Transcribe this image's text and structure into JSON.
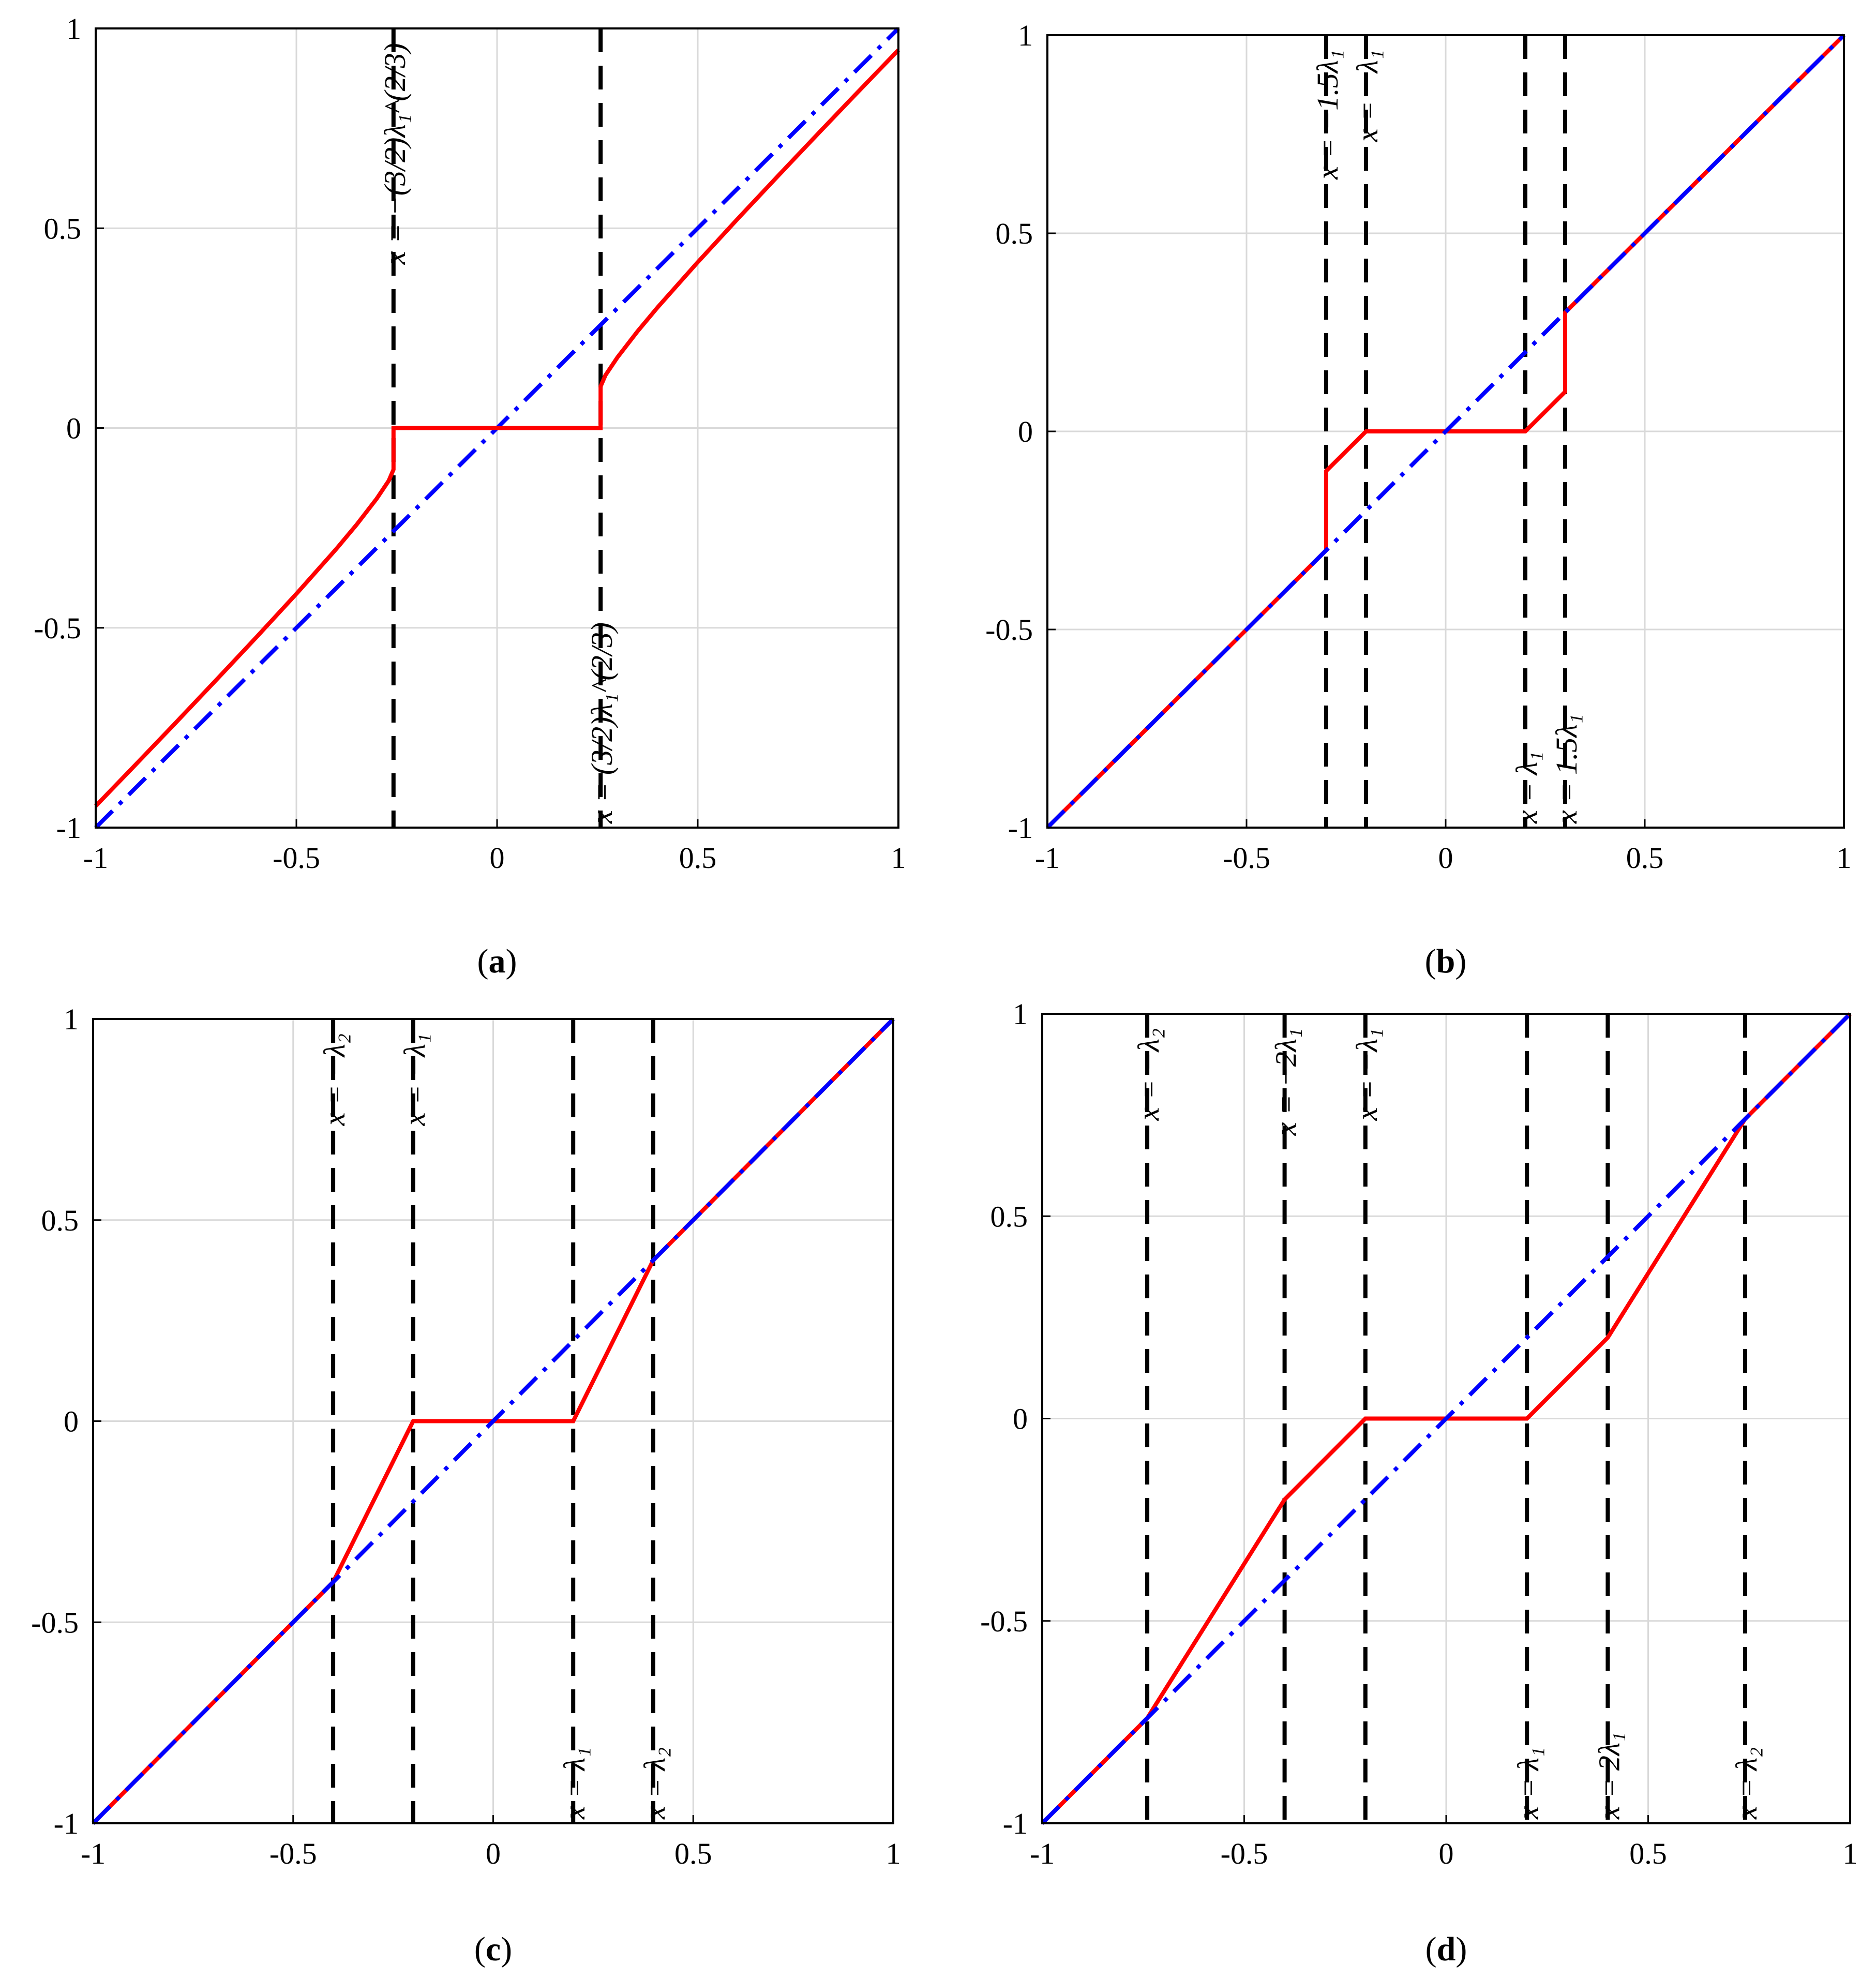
{
  "chart_data": [
    {
      "type": "line",
      "caption": "(a)",
      "caption_letter": "a",
      "xlim": [
        -1,
        1
      ],
      "ylim": [
        -1,
        1
      ],
      "xticks": [
        "-1",
        "-0.5",
        "0",
        "0.5",
        "1"
      ],
      "yticks": [
        "-1",
        "-0.5",
        "0",
        "0.5",
        "1"
      ],
      "grid": true,
      "colors": {
        "identity": "#0000ff",
        "threshold": "#ff0000",
        "guide": "#000000"
      },
      "series": [
        {
          "style": "blue-dashdot",
          "x": [
            -1,
            1
          ],
          "y": [
            -1,
            1
          ]
        },
        {
          "style": "red-solid",
          "x": [
            -1,
            -0.9,
            -0.8,
            -0.7,
            -0.6,
            -0.5,
            -0.4,
            -0.35,
            -0.3,
            -0.27,
            -0.258,
            -0.258,
            0.258,
            0.258,
            0.27,
            0.3,
            0.35,
            0.4,
            0.5,
            0.6,
            0.7,
            0.8,
            0.9,
            1
          ],
          "y": [
            -0.946,
            -0.842,
            -0.737,
            -0.631,
            -0.524,
            -0.415,
            -0.302,
            -0.242,
            -0.177,
            -0.132,
            -0.104,
            0,
            0,
            0.104,
            0.132,
            0.177,
            0.242,
            0.302,
            0.415,
            0.524,
            0.631,
            0.737,
            0.842,
            0.946
          ]
        }
      ],
      "vlines": [
        {
          "x": -0.258,
          "label": "x = −(3/2)λ₁^(2/3)",
          "pos": "top"
        },
        {
          "x": 0.258,
          "label": "x = (3/2)λ₁^(2/3)",
          "pos": "bottom"
        }
      ]
    },
    {
      "type": "line",
      "caption": "(b)",
      "caption_letter": "b",
      "xlim": [
        -1,
        1
      ],
      "ylim": [
        -1,
        1
      ],
      "xticks": [
        "-1",
        "-0.5",
        "0",
        "0.5",
        "1"
      ],
      "yticks": [
        "-1",
        "-0.5",
        "0",
        "0.5",
        "1"
      ],
      "grid": true,
      "series": [
        {
          "style": "red-solid",
          "x": [
            -1,
            -0.3,
            -0.3,
            -0.2,
            0.2,
            0.3,
            0.3,
            1
          ],
          "y": [
            -1,
            -0.3,
            -0.1,
            0,
            0,
            0.1,
            0.3,
            1
          ]
        },
        {
          "style": "blue-dashdot",
          "x": [
            -1,
            1
          ],
          "y": [
            -1,
            1
          ]
        }
      ],
      "vlines": [
        {
          "x": -0.3,
          "label": "x = −1.5λ₁",
          "pos": "top"
        },
        {
          "x": -0.2,
          "label": "x = −λ₁",
          "pos": "top"
        },
        {
          "x": 0.2,
          "label": "x = λ₁",
          "pos": "bottom"
        },
        {
          "x": 0.3,
          "label": "x = 1.5λ₁",
          "pos": "bottom"
        }
      ]
    },
    {
      "type": "line",
      "caption": "(c)",
      "caption_letter": "c",
      "xlim": [
        -1,
        1
      ],
      "ylim": [
        -1,
        1
      ],
      "xticks": [
        "-1",
        "-0.5",
        "0",
        "0.5",
        "1"
      ],
      "yticks": [
        "-1",
        "-0.5",
        "0",
        "0.5",
        "1"
      ],
      "grid": true,
      "series": [
        {
          "style": "red-solid",
          "x": [
            -1,
            -0.4,
            -0.2,
            0.2,
            0.4,
            1
          ],
          "y": [
            -1,
            -0.4,
            0,
            0,
            0.4,
            1
          ]
        },
        {
          "style": "blue-dashdot",
          "x": [
            -1,
            1
          ],
          "y": [
            -1,
            1
          ]
        }
      ],
      "vlines": [
        {
          "x": -0.4,
          "label": "x = −λ₂",
          "pos": "top"
        },
        {
          "x": -0.2,
          "label": "x = −λ₁",
          "pos": "top"
        },
        {
          "x": 0.2,
          "label": "x = λ₁",
          "pos": "bottom"
        },
        {
          "x": 0.4,
          "label": "x = λ₂",
          "pos": "bottom"
        }
      ]
    },
    {
      "type": "line",
      "caption": "(d)",
      "caption_letter": "d",
      "xlim": [
        -1,
        1
      ],
      "ylim": [
        -1,
        1
      ],
      "xticks": [
        "-1",
        "-0.5",
        "0",
        "0.5",
        "1"
      ],
      "yticks": [
        "-1",
        "-0.5",
        "0",
        "0.5",
        "1"
      ],
      "grid": true,
      "series": [
        {
          "style": "red-solid",
          "x": [
            -1,
            -0.74,
            -0.4,
            -0.2,
            0.2,
            0.4,
            0.74,
            1
          ],
          "y": [
            -1,
            -0.74,
            -0.2,
            0,
            0,
            0.2,
            0.74,
            1
          ]
        },
        {
          "style": "blue-dashdot",
          "x": [
            -1,
            1
          ],
          "y": [
            -1,
            1
          ]
        }
      ],
      "vlines": [
        {
          "x": -0.74,
          "label": "x = −λ₂",
          "pos": "top"
        },
        {
          "x": -0.4,
          "label": "x = −2λ₁",
          "pos": "top"
        },
        {
          "x": -0.2,
          "label": "x = −λ₁",
          "pos": "top"
        },
        {
          "x": 0.2,
          "label": "x = λ₁",
          "pos": "bottom"
        },
        {
          "x": 0.4,
          "label": "x = 2λ₁",
          "pos": "bottom"
        },
        {
          "x": 0.74,
          "label": "x = λ₂",
          "pos": "bottom"
        }
      ]
    }
  ]
}
